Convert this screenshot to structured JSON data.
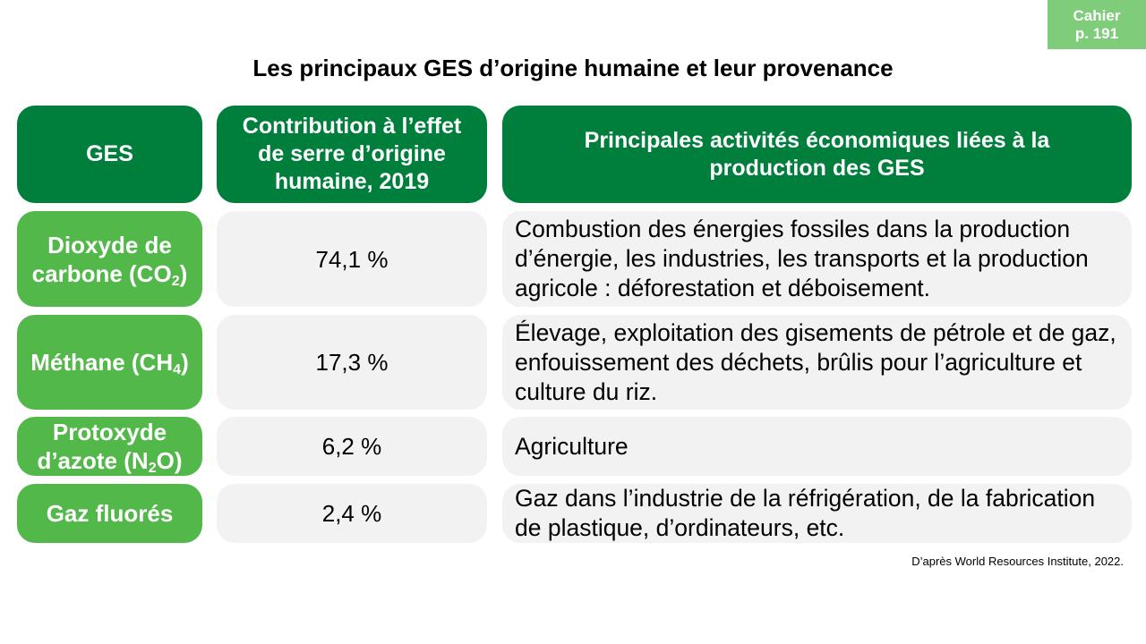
{
  "badge": {
    "line1": "Cahier",
    "line2": "p. 191"
  },
  "title": "Les principaux GES d’origine humaine et leur provenance",
  "headers": {
    "gas": "GES",
    "contribution": "Contribution à l’effet de serre d’origine humaine, 2019",
    "activities": "Principales activités économiques liées à la production des GES"
  },
  "rows": [
    {
      "gas": {
        "pre": "Dioxyde de carbone (CO",
        "sub": "2",
        "post": ")"
      },
      "value": "74,1 %",
      "activities": "Combustion des énergies fossiles dans la production d’énergie, les industries, les transports et la production agricole : déforestation et déboisement."
    },
    {
      "gas": {
        "pre": "Méthane (CH",
        "sub": "4",
        "post": ")"
      },
      "value": "17,3 %",
      "activities": "Élevage, exploitation des gisements de pétrole et de gaz, enfouissement des déchets, brûlis pour l’agriculture et culture du riz."
    },
    {
      "gas": {
        "pre": "Protoxyde d’azote (N",
        "sub": "2",
        "post": "O)"
      },
      "value": "6,2 %",
      "activities": "Agriculture"
    },
    {
      "gas": {
        "pre": "Gaz fluorés",
        "sub": "",
        "post": ""
      },
      "value": "2,4 %",
      "activities": "Gaz dans l’industrie de la réfrigération, de la fabrication de plastique, d’ordinateurs, etc."
    }
  ],
  "source": "D’après World Resources Institute, 2022.",
  "colors": {
    "header_green": "#007f3c",
    "gas_green": "#52b84a",
    "badge_green": "#7fcc7a",
    "cell_grey": "#f2f2f2"
  }
}
